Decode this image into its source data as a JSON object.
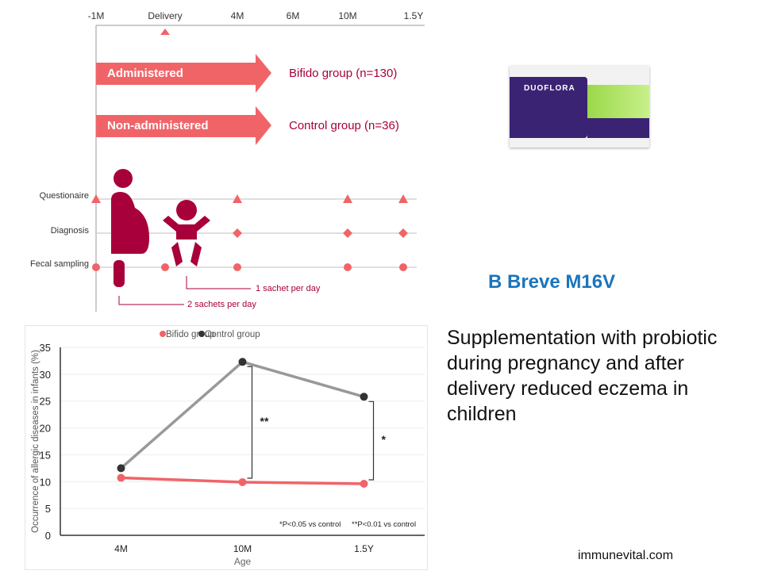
{
  "timeline": {
    "ticks": [
      "-1M",
      "Delivery",
      "4M",
      "6M",
      "10M",
      "1.5Y"
    ],
    "arrows": [
      {
        "label": "Administered",
        "group": "Bifido group (n=130)"
      },
      {
        "label": "Non-administered",
        "group": "Control group (n=36)"
      }
    ],
    "rows": [
      "Questionaire",
      "Diagnosis",
      "Fecal sampling"
    ],
    "doses": {
      "mother": "2 sachets per day",
      "infant": "1 sachet per day"
    },
    "colors": {
      "accent": "#f06468",
      "dark": "#a8003a"
    }
  },
  "product": {
    "brand": "DUOFLORA"
  },
  "title": "B Breve M16V",
  "description": "Supplementation with probiotic during pregnancy and after delivery reduced eczema in children",
  "site": "immunevital.com",
  "chart_data": {
    "type": "line",
    "categories": [
      "4M",
      "10M",
      "1.5Y"
    ],
    "series": [
      {
        "name": "Bifido group",
        "values": [
          10.7,
          9.9,
          9.6
        ],
        "color": "#f06468"
      },
      {
        "name": "Control group",
        "values": [
          12.5,
          32.3,
          25.8
        ],
        "color": "#333333"
      }
    ],
    "xlabel": "Age",
    "ylabel": "Occurrence of allergic diseases in infants (%)",
    "ylim": [
      0,
      35
    ],
    "yticks": [
      0,
      5,
      10,
      15,
      20,
      25,
      30,
      35
    ],
    "annotations": [
      "**",
      "*"
    ],
    "footnotes": [
      "*P<0.05 vs control",
      "**P<0.01 vs control"
    ],
    "legend": "top",
    "grid": true
  }
}
